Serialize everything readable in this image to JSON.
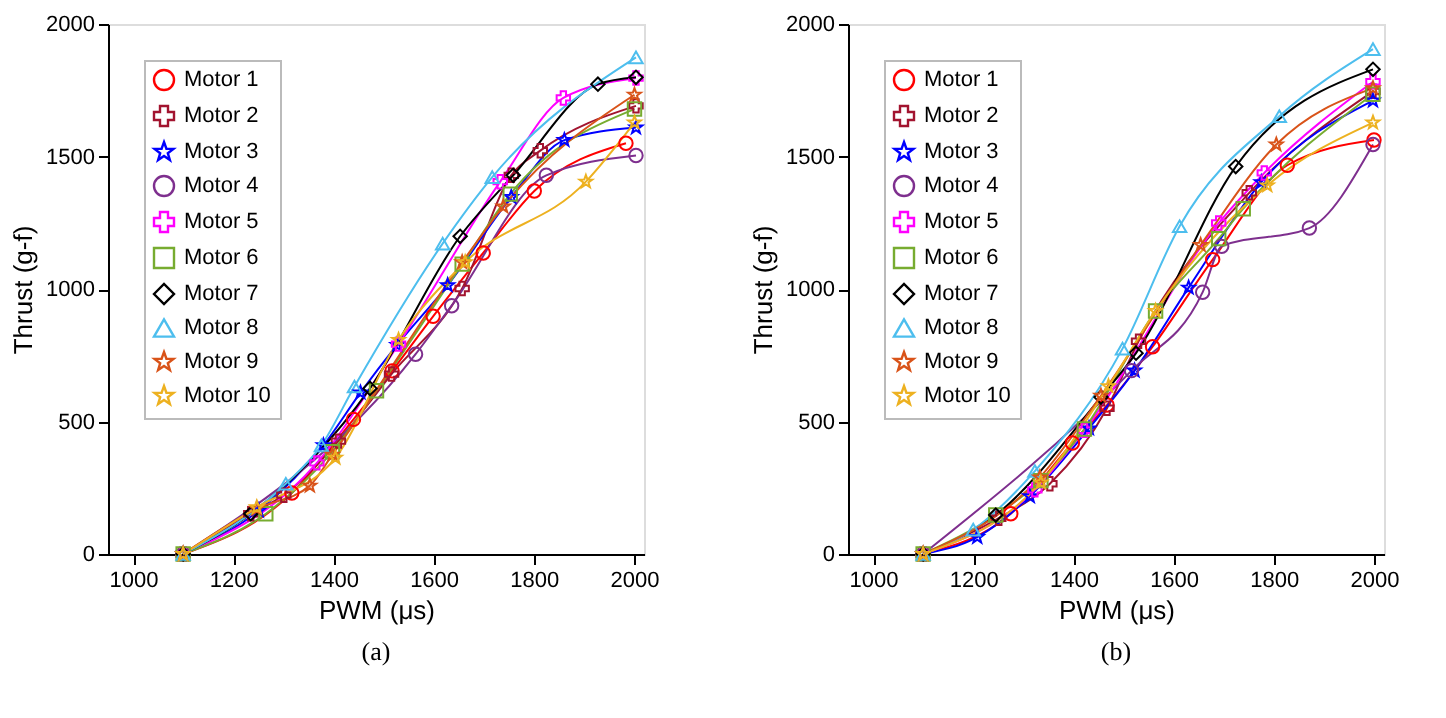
{
  "chart_data": [
    {
      "type": "line",
      "xlabel": "PWM (μs)",
      "ylabel": "Thrust (g-f)",
      "annotations": [
        "(a)"
      ],
      "xlim": [
        950,
        2020
      ],
      "xticks": [
        1000,
        1200,
        1400,
        1600,
        1800,
        2000
      ],
      "ylim": [
        0,
        2000
      ],
      "yticks": [
        0,
        500,
        1000,
        1500,
        2000
      ],
      "grid": false,
      "legend": "top left",
      "series": [
        {
          "name": "Motor 1",
          "color": "#ff0000",
          "marker": "circle",
          "x": [
            1100,
            1317,
            1440,
            1517,
            1599,
            1699,
            1801,
            1984
          ],
          "values": [
            0,
            230,
            508,
            691,
            897,
            1136,
            1370,
            1550
          ]
        },
        {
          "name": "Motor 2",
          "color": "#a2142f",
          "marker": "cross",
          "x": [
            1100,
            1235,
            1301,
            1410,
            1516,
            1657,
            1755,
            1813,
            2004
          ],
          "values": [
            0,
            152,
            222,
            426,
            679,
            1002,
            1429,
            1522,
            1691
          ]
        },
        {
          "name": "Motor 3",
          "color": "#0000ff",
          "marker": "star",
          "x": [
            1100,
            1251,
            1380,
            1454,
            1527,
            1628,
            1755,
            1861,
            2004
          ],
          "values": [
            0,
            164,
            410,
            609,
            789,
            1014,
            1347,
            1562,
            1609
          ]
        },
        {
          "name": "Motor 4",
          "color": "#7e2f8e",
          "marker": "circle",
          "x": [
            1100,
            1564,
            1636,
            1825,
            2004
          ],
          "values": [
            0,
            754,
            937,
            1429,
            1504
          ]
        },
        {
          "name": "Motor 5",
          "color": "#ff00ff",
          "marker": "cross",
          "x": [
            1100,
            1367,
            1530,
            1733,
            1859,
            2004
          ],
          "values": [
            0,
            344,
            792,
            1405,
            1721,
            1796
          ]
        },
        {
          "name": "Motor 6",
          "color": "#77ac30",
          "marker": "square",
          "x": [
            1100,
            1265,
            1398,
            1486,
            1657,
            1753,
            2001
          ],
          "values": [
            0,
            152,
            386,
            616,
            1094,
            1358,
            1679
          ]
        },
        {
          "name": "Motor 7",
          "color": "#000000",
          "marker": "diamond",
          "x": [
            1100,
            1235,
            1473,
            1653,
            1759,
            1928,
            2004
          ],
          "values": [
            0,
            152,
            625,
            1199,
            1429,
            1773,
            1799
          ]
        },
        {
          "name": "Motor 8",
          "color": "#4dbeee",
          "marker": "triangle",
          "x": [
            1100,
            1305,
            1376,
            1442,
            1618,
            1717,
            2004
          ],
          "values": [
            0,
            265,
            410,
            632,
            1171,
            1422,
            1874
          ]
        },
        {
          "name": "Motor 9",
          "color": "#d95319",
          "marker": "star",
          "x": [
            1100,
            1247,
            1353,
            1398,
            1657,
            1739,
            2001
          ],
          "values": [
            0,
            171,
            258,
            375,
            1101,
            1311,
            1733
          ]
        },
        {
          "name": "Motor 10",
          "color": "#edb120",
          "marker": "star",
          "x": [
            1100,
            1247,
            1404,
            1530,
            1663,
            1904,
            2001
          ],
          "values": [
            0,
            176,
            363,
            808,
            1101,
            1405,
            1628
          ]
        }
      ]
    },
    {
      "type": "line",
      "xlabel": "PWM (μs)",
      "ylabel": "Thrust (g-f)",
      "annotations": [
        "(b)"
      ],
      "xlim": [
        950,
        2020
      ],
      "xticks": [
        1000,
        1200,
        1400,
        1600,
        1800,
        2000
      ],
      "ylim": [
        0,
        2000
      ],
      "yticks": [
        0,
        500,
        1000,
        1500,
        2000
      ],
      "grid": false,
      "legend": "top left",
      "series": [
        {
          "name": "Motor 1",
          "color": "#ff0000",
          "marker": "circle",
          "x": [
            1100,
            1275,
            1398,
            1467,
            1558,
            1678,
            1827,
            2000
          ],
          "values": [
            0,
            152,
            419,
            562,
            782,
            1111,
            1467,
            1562
          ]
        },
        {
          "name": "Motor 2",
          "color": "#a2142f",
          "marker": "cross",
          "x": [
            1100,
            1251,
            1353,
            1467,
            1530,
            1751,
            1998
          ],
          "values": [
            0,
            135,
            265,
            550,
            803,
            1363,
            1746
          ]
        },
        {
          "name": "Motor 3",
          "color": "#0000ff",
          "marker": "star",
          "x": [
            1100,
            1208,
            1313,
            1431,
            1522,
            1630,
            1775,
            1998
          ],
          "values": [
            0,
            64,
            218,
            474,
            692,
            1005,
            1403,
            1711
          ]
        },
        {
          "name": "Motor 4",
          "color": "#7e2f8e",
          "marker": "circle",
          "x": [
            1100,
            1516,
            1658,
            1696,
            1871,
            1998
          ],
          "values": [
            0,
            692,
            988,
            1161,
            1230,
            1545
          ]
        },
        {
          "name": "Motor 5",
          "color": "#ff00ff",
          "marker": "cross",
          "x": [
            1100,
            1323,
            1422,
            1690,
            1781,
            1998
          ],
          "values": [
            0,
            242,
            467,
            1249,
            1438,
            1782
          ]
        },
        {
          "name": "Motor 6",
          "color": "#77ac30",
          "marker": "square",
          "x": [
            1100,
            1245,
            1335,
            1422,
            1564,
            1690,
            1739,
            1998
          ],
          "values": [
            0,
            147,
            277,
            472,
            917,
            1190,
            1303,
            1735
          ]
        },
        {
          "name": "Motor 7",
          "color": "#000000",
          "marker": "diamond",
          "x": [
            1100,
            1245,
            1455,
            1525,
            1724,
            1998
          ],
          "values": [
            0,
            147,
            592,
            758,
            1462,
            1829
          ]
        },
        {
          "name": "Motor 8",
          "color": "#4dbeee",
          "marker": "triangle",
          "x": [
            1100,
            1200,
            1323,
            1498,
            1612,
            1811,
            1998
          ],
          "values": [
            0,
            92,
            313,
            775,
            1237,
            1652,
            1905
          ]
        },
        {
          "name": "Motor 9",
          "color": "#d95319",
          "marker": "star",
          "x": [
            1100,
            1333,
            1455,
            1654,
            1805,
            1998
          ],
          "values": [
            0,
            289,
            597,
            1166,
            1545,
            1758
          ]
        },
        {
          "name": "Motor 10",
          "color": "#edb120",
          "marker": "star",
          "x": [
            1100,
            1335,
            1470,
            1564,
            1787,
            1998
          ],
          "values": [
            0,
            270,
            633,
            917,
            1391,
            1628
          ]
        }
      ]
    }
  ]
}
